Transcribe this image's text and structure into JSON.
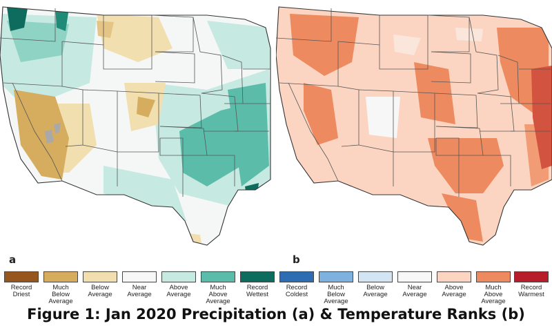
{
  "panels": {
    "a": {
      "letter": "a"
    },
    "b": {
      "letter": "b"
    }
  },
  "legend_a": [
    {
      "label": "Record\nDriest",
      "color": "#98561f"
    },
    {
      "label": "Much\nBelow\nAverage",
      "color": "#d6ad5e"
    },
    {
      "label": "Below\nAverage",
      "color": "#f2dfb0"
    },
    {
      "label": "Near\nAverage",
      "color": "#f7f7f7"
    },
    {
      "label": "Above\nAverage",
      "color": "#c6e9e1"
    },
    {
      "label": "Much\nAbove\nAverage",
      "color": "#5cbcaa"
    },
    {
      "label": "Record\nWettest",
      "color": "#0d6c5d"
    }
  ],
  "legend_b": [
    {
      "label": "Record\nColdest",
      "color": "#2f6db3"
    },
    {
      "label": "Much\nBelow\nAverage",
      "color": "#7fb1de"
    },
    {
      "label": "Below\nAverage",
      "color": "#d3e5f3"
    },
    {
      "label": "Near\nAverage",
      "color": "#f7f7f7"
    },
    {
      "label": "Above\nAverage",
      "color": "#fbd5c2"
    },
    {
      "label": "Much\nAbove\nAverage",
      "color": "#ee8a5f"
    },
    {
      "label": "Record\nWarmest",
      "color": "#b81d2a"
    }
  ],
  "caption": "Figure 1: Jan 2020 Precipitation (a) & Temperature Ranks (b)"
}
